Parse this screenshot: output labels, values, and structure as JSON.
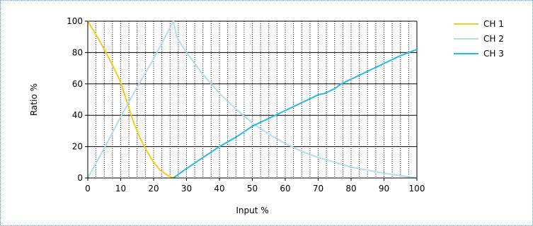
{
  "chart_data": {
    "type": "line",
    "title": "",
    "xlabel": "Input %",
    "ylabel": "Ratio %",
    "xlim": [
      0,
      100
    ],
    "ylim": [
      0,
      100
    ],
    "x_ticks": [
      0,
      10,
      20,
      30,
      40,
      50,
      60,
      70,
      80,
      90,
      100
    ],
    "y_ticks": [
      0,
      20,
      40,
      60,
      80,
      100
    ],
    "x_minor_step": 2.5,
    "grid": true,
    "legend_position": "top-right",
    "series": [
      {
        "name": "CH 1",
        "color": "#f5cb1c",
        "x": [
          0,
          2,
          4,
          6,
          8,
          10,
          12,
          14,
          16,
          18,
          20,
          22,
          24,
          26
        ],
        "y": [
          100,
          93,
          86,
          78,
          70,
          61,
          48,
          35,
          25,
          17,
          10,
          5,
          2,
          0
        ]
      },
      {
        "name": "CH 2",
        "color": "#b3dcea",
        "x": [
          0,
          5,
          10,
          15,
          20,
          24,
          26,
          27,
          30,
          35,
          40,
          45,
          50,
          55,
          60,
          65,
          70,
          75,
          80,
          85,
          90,
          95,
          100
        ],
        "y": [
          0,
          19,
          39,
          58,
          76,
          92,
          100,
          90,
          80,
          66,
          54,
          44,
          35,
          28,
          22,
          17,
          13,
          10,
          7,
          5,
          3,
          1.5,
          0
        ]
      },
      {
        "name": "CH 3",
        "color": "#25b9ea",
        "x": [
          26,
          30,
          35,
          40,
          45,
          50,
          55,
          60,
          65,
          70,
          72,
          75,
          77,
          80,
          85,
          90,
          95,
          100
        ],
        "y": [
          0,
          6,
          13,
          20,
          26,
          33,
          38,
          43,
          48,
          53,
          54,
          57,
          60,
          63,
          68,
          73,
          78,
          82
        ]
      }
    ]
  }
}
